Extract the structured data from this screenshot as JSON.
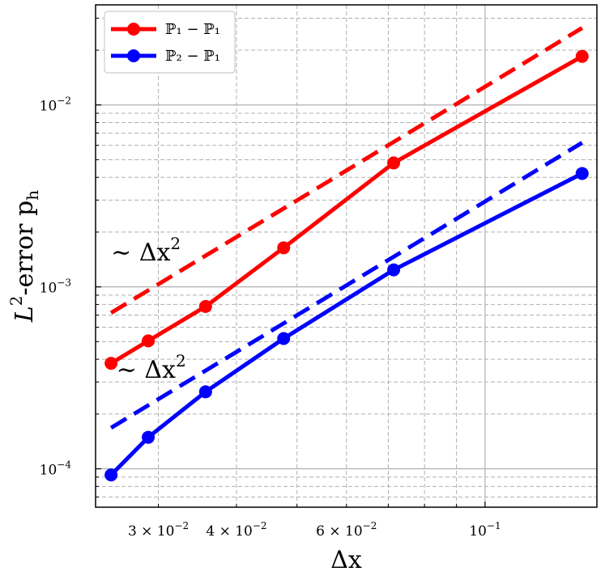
{
  "chart_data": {
    "type": "line",
    "xscale": "log",
    "yscale": "log",
    "xlim": [
      0.0238,
      0.151
    ],
    "ylim": [
      6.15e-05,
      0.0355
    ],
    "xlabel": "Δx",
    "ylabel_main": "L",
    "ylabel_sup": "2",
    "ylabel_rest": "-error p",
    "ylabel_sub": "h",
    "grid": true,
    "legend_position": "top-left",
    "x_ticks": [
      {
        "value": 0.03,
        "mantissa": "3 × 10",
        "exp": "−2"
      },
      {
        "value": 0.04,
        "mantissa": "4 × 10",
        "exp": "−2"
      },
      {
        "value": 0.06,
        "mantissa": "6 × 10",
        "exp": "−2"
      },
      {
        "value": 0.1,
        "mantissa": "10",
        "exp": "−1"
      }
    ],
    "y_ticks": [
      {
        "value": 0.0001,
        "mantissa": "10",
        "exp": "−4"
      },
      {
        "value": 0.001,
        "mantissa": "10",
        "exp": "−3"
      },
      {
        "value": 0.01,
        "mantissa": "10",
        "exp": "−2"
      }
    ],
    "series": [
      {
        "name": "ℙ₁ − ℙ₁",
        "color": "#ff0000",
        "x": [
          0.0252,
          0.0289,
          0.0357,
          0.0476,
          0.0714,
          0.143
        ],
        "y": [
          0.00038,
          0.000505,
          0.00078,
          0.00164,
          0.0048,
          0.0185
        ]
      },
      {
        "name": "ℙ₂ − ℙ₁",
        "color": "#0000ff",
        "x": [
          0.0252,
          0.0289,
          0.0357,
          0.0476,
          0.0714,
          0.143
        ],
        "y": [
          9.25e-05,
          0.000149,
          0.000265,
          0.00052,
          0.00124,
          0.0042
        ]
      }
    ],
    "reference_lines": [
      {
        "color": "#ff0000",
        "x": [
          0.0252,
          0.143
        ],
        "y": [
          0.00072,
          0.0265
        ],
        "label": "∼ Δx",
        "label_sup": "2",
        "label_x": 0.0252,
        "label_y": 0.00155
      },
      {
        "color": "#0000ff",
        "x": [
          0.0252,
          0.143
        ],
        "y": [
          0.000168,
          0.0062
        ],
        "label": "∼ Δx",
        "label_sup": "2",
        "label_x": 0.0257,
        "label_y": 0.00035
      }
    ]
  }
}
